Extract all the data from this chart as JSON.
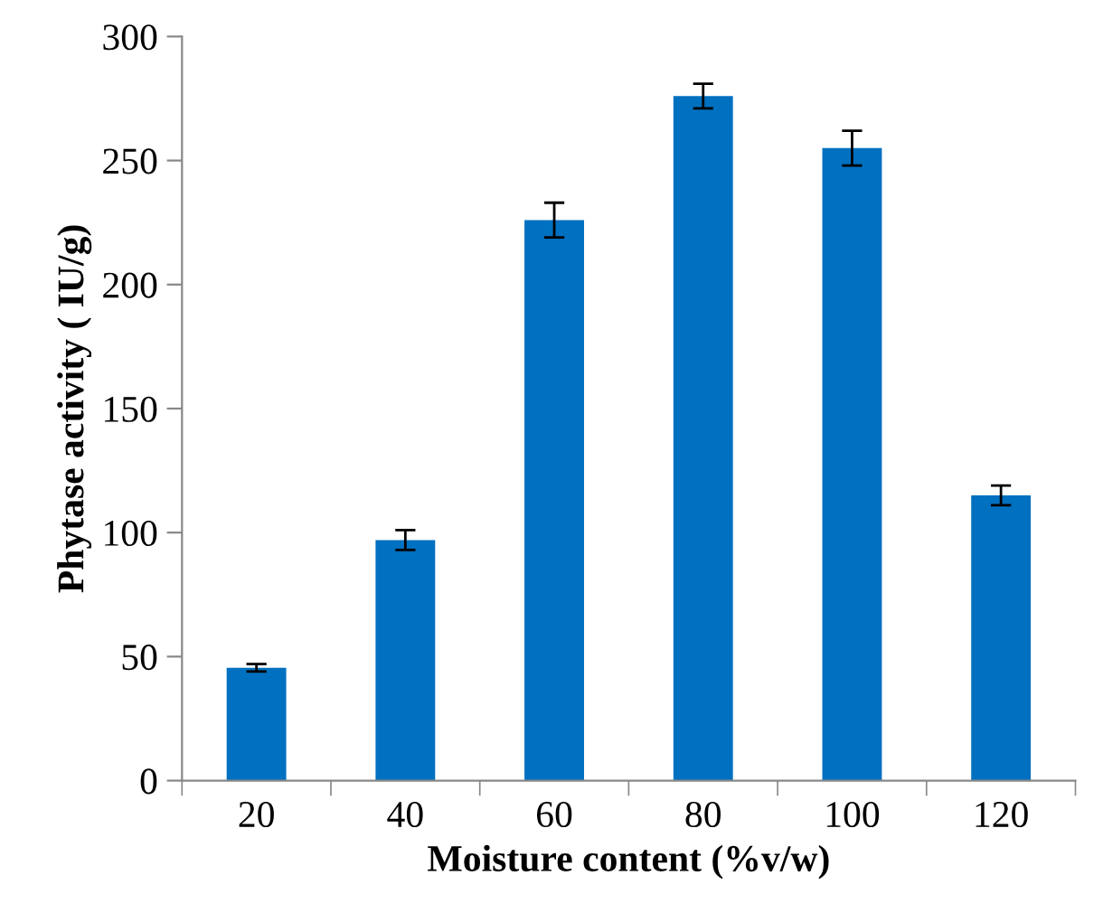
{
  "chart_data": {
    "type": "bar",
    "xlabel": "Moisture content (%v/w)",
    "ylabel": "Phytase activity ( IU/g)",
    "categories": [
      "20",
      "40",
      "60",
      "80",
      "100",
      "120"
    ],
    "values": [
      45.5,
      97,
      226,
      276,
      255,
      115
    ],
    "errors": [
      1.5,
      4,
      7,
      5,
      7,
      4
    ],
    "color": "#0070c0",
    "ylim": [
      0,
      300
    ],
    "yticks": [
      0,
      50,
      100,
      150,
      200,
      250,
      300
    ],
    "grid": false
  }
}
